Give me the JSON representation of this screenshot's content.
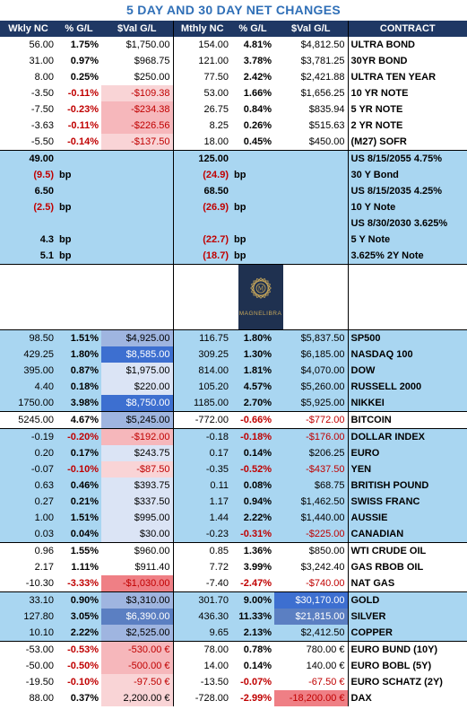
{
  "title": "5 DAY AND 30 DAY NET CHANGES",
  "headers": [
    "Wkly NC",
    "% G/L",
    "$Val G/L",
    "Mthly NC",
    "% G/L",
    "$Val G/L",
    "CONTRACT"
  ],
  "logo": {
    "text": "MAGNELIBRA",
    "colors": {
      "bg": "#1f3150",
      "gold": "#c6a65a"
    }
  },
  "colors": {
    "header_bg": "#1f3864",
    "title": "#2f6fb7",
    "blue": "#a9d6f1",
    "neg": "#c00000"
  },
  "rows": [
    {
      "band": "white",
      "w": "56.00",
      "wp": "1.75%",
      "wv": "$1,750.00",
      "m": "154.00",
      "mp": "4.81%",
      "mv": "$4,812.50",
      "c": "ULTRA BOND"
    },
    {
      "band": "white",
      "w": "31.00",
      "wp": "0.97%",
      "wv": "$968.75",
      "m": "121.00",
      "mp": "3.78%",
      "mv": "$3,781.25",
      "c": "30YR BOND"
    },
    {
      "band": "white",
      "w": "8.00",
      "wp": "0.25%",
      "wv": "$250.00",
      "m": "77.50",
      "mp": "2.42%",
      "mv": "$2,421.88",
      "c": "ULTRA TEN YEAR"
    },
    {
      "band": "white",
      "w": "-3.50",
      "wp": "-0.11%",
      "wv": "-$109.38",
      "m": "53.00",
      "mp": "1.66%",
      "mv": "$1,656.25",
      "c": "10 YR NOTE",
      "wvc": "pinkL"
    },
    {
      "band": "white",
      "w": "-7.50",
      "wp": "-0.23%",
      "wv": "-$234.38",
      "m": "26.75",
      "mp": "0.84%",
      "mv": "$835.94",
      "c": "5 YR NOTE",
      "wvc": "pinkM"
    },
    {
      "band": "white",
      "w": "-3.63",
      "wp": "-0.11%",
      "wv": "-$226.56",
      "m": "8.25",
      "mp": "0.26%",
      "mv": "$515.63",
      "c": "2 YR NOTE",
      "wvc": "pinkM"
    },
    {
      "band": "white",
      "w": "-5.50",
      "wp": "-0.14%",
      "wv": "-$137.50",
      "m": "18.00",
      "mp": "0.45%",
      "mv": "$450.00",
      "c": "(M27) SOFR",
      "wvc": "pinkL"
    }
  ],
  "yields": [
    {
      "w": "49.00",
      "wu": "",
      "m": "125.00",
      "mu": "",
      "c": "US 8/15/2055 4.75%"
    },
    {
      "w": "(9.5)",
      "wu": "bp",
      "m": "(24.9)",
      "mu": "bp",
      "c": "30 Y Bond",
      "neg": true
    },
    {
      "w": "6.50",
      "wu": "",
      "m": "68.50",
      "mu": "",
      "c": "US 8/15/2035 4.25%"
    },
    {
      "w": "(2.5)",
      "wu": "bp",
      "m": "(26.9)",
      "mu": "bp",
      "c": "10 Y Note",
      "neg": true
    },
    {
      "w": "",
      "wu": "",
      "m": "",
      "mu": "",
      "c": "US 8/30/2030 3.625%"
    },
    {
      "w": "4.3",
      "wu": "bp",
      "m": "(22.7)",
      "mu": "bp",
      "c": "5 Y  Note",
      "mneg": true
    },
    {
      "w": "5.1",
      "wu": "bp",
      "m": "(18.7)",
      "mu": "bp",
      "c": "3.625% 2Y Note",
      "mneg": true
    }
  ],
  "groups": [
    {
      "band": "blue",
      "rows": [
        {
          "w": "98.50",
          "wp": "1.51%",
          "wv": "$4,925.00",
          "m": "116.75",
          "mp": "1.80%",
          "mv": "$5,837.50",
          "c": "SP500",
          "wvc": "mid"
        },
        {
          "w": "429.25",
          "wp": "1.80%",
          "wv": "$8,585.00",
          "m": "309.25",
          "mp": "1.30%",
          "mv": "$6,185.00",
          "c": "NASDAQ 100",
          "wvc": "dark2"
        },
        {
          "w": "395.00",
          "wp": "0.87%",
          "wv": "$1,975.00",
          "m": "814.00",
          "mp": "1.81%",
          "mv": "$4,070.00",
          "c": "DOW",
          "wvc": "light"
        },
        {
          "w": "4.40",
          "wp": "0.18%",
          "wv": "$220.00",
          "m": "105.20",
          "mp": "4.57%",
          "mv": "$5,260.00",
          "c": "RUSSELL 2000",
          "wvc": "light"
        },
        {
          "w": "1750.00",
          "wp": "3.98%",
          "wv": "$8,750.00",
          "m": "1185.00",
          "mp": "2.70%",
          "mv": "$5,925.00",
          "c": "NIKKEI",
          "wvc": "dark2"
        }
      ]
    },
    {
      "band": "white",
      "rows": [
        {
          "w": "5245.00",
          "wp": "4.67%",
          "wv": "$5,245.00",
          "m": "-772.00",
          "mp": "-0.66%",
          "mv": "-$772.00",
          "c": "BITCOIN",
          "wvc": "mid"
        }
      ]
    },
    {
      "band": "blue",
      "rows": [
        {
          "w": "-0.19",
          "wp": "-0.20%",
          "wv": "-$192.00",
          "m": "-0.18",
          "mp": "-0.18%",
          "mv": "-$176.00",
          "c": "DOLLAR INDEX",
          "wvc": "pinkM"
        },
        {
          "w": "0.20",
          "wp": "0.17%",
          "wv": "$243.75",
          "m": "0.17",
          "mp": "0.14%",
          "mv": "$206.25",
          "c": "EURO",
          "wvc": "light"
        },
        {
          "w": "-0.07",
          "wp": "-0.10%",
          "wv": "-$87.50",
          "m": "-0.35",
          "mp": "-0.52%",
          "mv": "-$437.50",
          "c": "YEN",
          "wvc": "pinkL"
        },
        {
          "w": "0.63",
          "wp": "0.46%",
          "wv": "$393.75",
          "m": "0.11",
          "mp": "0.08%",
          "mv": "$68.75",
          "c": "BRITISH POUND",
          "wvc": "light"
        },
        {
          "w": "0.27",
          "wp": "0.21%",
          "wv": "$337.50",
          "m": "1.17",
          "mp": "0.94%",
          "mv": "$1,462.50",
          "c": "SWISS FRANC",
          "wvc": "light"
        },
        {
          "w": "1.00",
          "wp": "1.51%",
          "wv": "$995.00",
          "m": "1.44",
          "mp": "2.22%",
          "mv": "$1,440.00",
          "c": "AUSSIE",
          "wvc": "light"
        },
        {
          "w": "0.03",
          "wp": "0.04%",
          "wv": "$30.00",
          "m": "-0.23",
          "mp": "-0.31%",
          "mv": "-$225.00",
          "c": "CANADIAN",
          "wvc": "light"
        }
      ]
    },
    {
      "band": "white",
      "rows": [
        {
          "w": "0.96",
          "wp": "1.55%",
          "wv": "$960.00",
          "m": "0.85",
          "mp": "1.36%",
          "mv": "$850.00",
          "c": "WTI CRUDE OIL"
        },
        {
          "w": "2.17",
          "wp": "1.11%",
          "wv": "$911.40",
          "m": "7.72",
          "mp": "3.99%",
          "mv": "$3,242.40",
          "c": "GAS RBOB OIL"
        },
        {
          "w": "-10.30",
          "wp": "-3.33%",
          "wv": "-$1,030.00",
          "m": "-7.40",
          "mp": "-2.47%",
          "mv": "-$740.00",
          "c": "NAT GAS",
          "wvc": "pinkD"
        }
      ]
    },
    {
      "band": "blue",
      "rows": [
        {
          "w": "33.10",
          "wp": "0.90%",
          "wv": "$3,310.00",
          "m": "301.70",
          "mp": "9.00%",
          "mv": "$30,170.00",
          "c": "GOLD",
          "wvc": "mid",
          "mvc": "dark2"
        },
        {
          "w": "127.80",
          "wp": "3.05%",
          "wv": "$6,390.00",
          "m": "436.30",
          "mp": "11.33%",
          "mv": "$21,815.00",
          "c": "SILVER",
          "wvc": "dark",
          "mvc": "dark"
        },
        {
          "w": "10.10",
          "wp": "2.22%",
          "wv": "$2,525.00",
          "m": "9.65",
          "mp": "2.13%",
          "mv": "$2,412.50",
          "c": "COPPER",
          "wvc": "mid"
        }
      ]
    },
    {
      "band": "white",
      "rows": [
        {
          "w": "-53.00",
          "wp": "-0.53%",
          "wv": "-530.00 €",
          "m": "78.00",
          "mp": "0.78%",
          "mv": "780.00 €",
          "c": "EURO BUND (10Y)",
          "wvc": "pinkM"
        },
        {
          "w": "-50.00",
          "wp": "-0.50%",
          "wv": "-500.00 €",
          "m": "14.00",
          "mp": "0.14%",
          "mv": "140.00 €",
          "c": "EURO BOBL (5Y)",
          "wvc": "pinkM"
        },
        {
          "w": "-19.50",
          "wp": "-0.10%",
          "wv": "-97.50 €",
          "m": "-13.50",
          "mp": "-0.07%",
          "mv": "-67.50 €",
          "c": "EURO SCHATZ (2Y)",
          "wvc": "pinkL"
        },
        {
          "w": "88.00",
          "wp": "0.37%",
          "wv": "2,200.00 €",
          "m": "-728.00",
          "mp": "-2.99%",
          "mv": "-18,200.00 €",
          "c": "DAX",
          "wvc": "pinkL",
          "mvc": "pinkD"
        }
      ]
    }
  ]
}
